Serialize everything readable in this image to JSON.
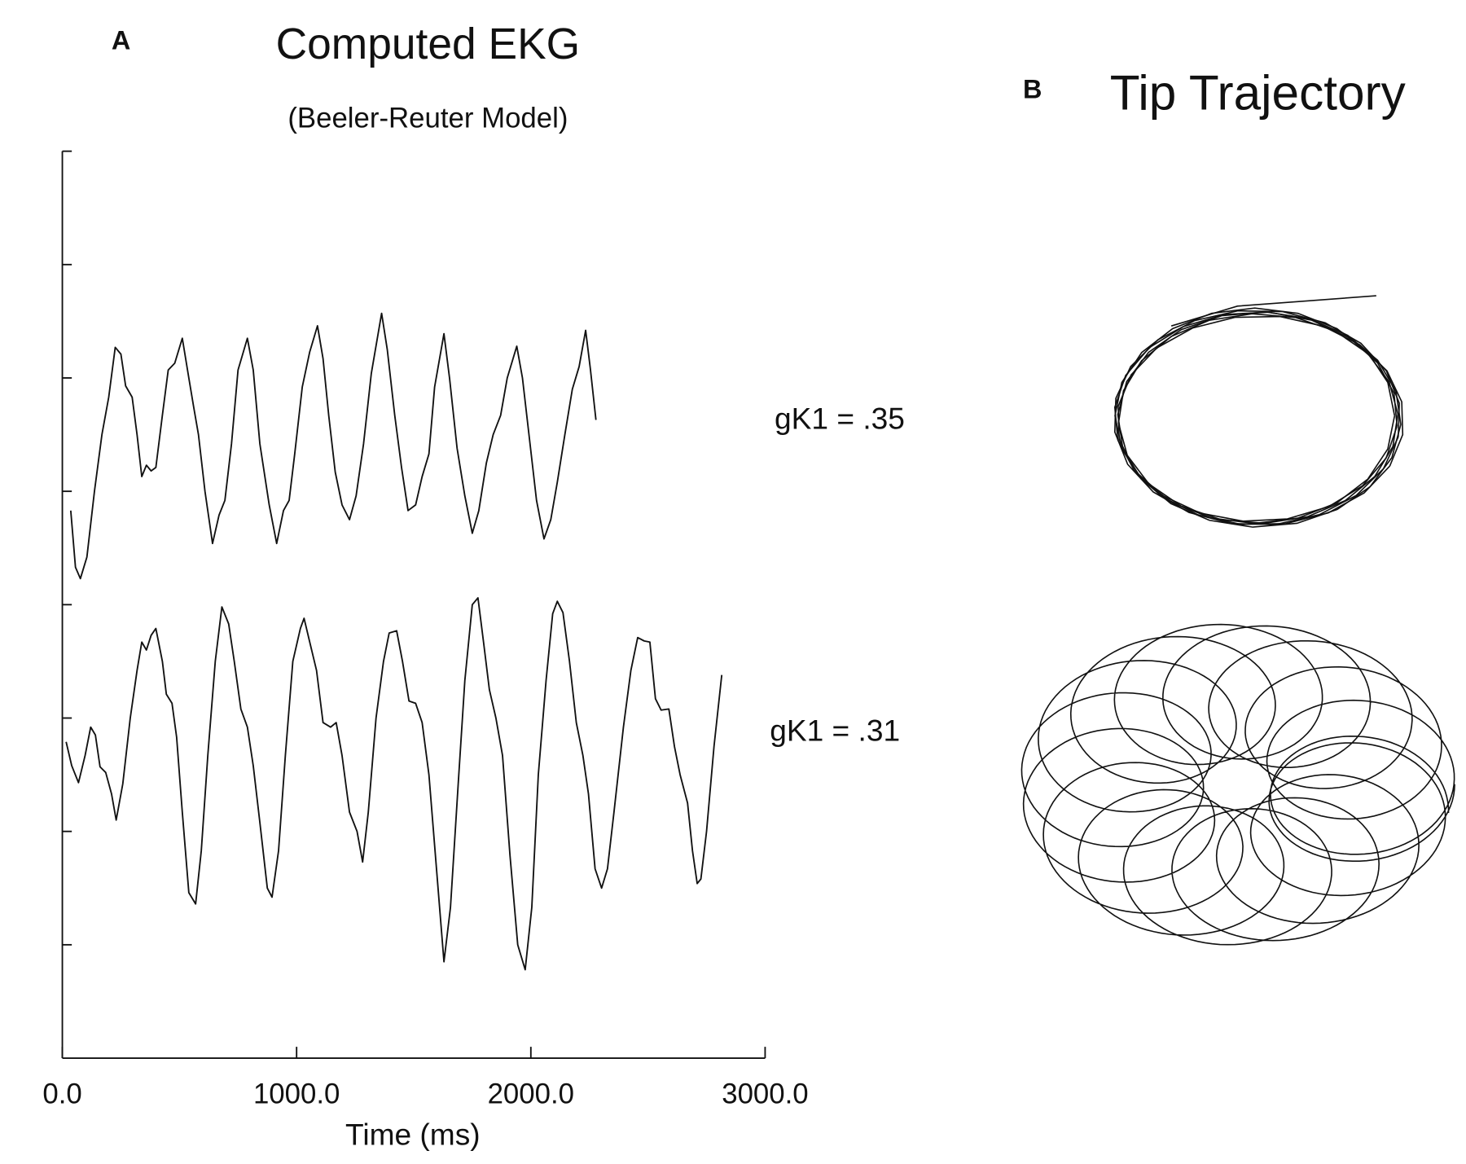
{
  "chart_data": [
    {
      "type": "line",
      "panel_label": "A",
      "title": "Computed EKG",
      "subtitle": "(Beeler-Reuter Model)",
      "x_label": "Time (ms)",
      "xlim": [
        0,
        3000
      ],
      "xticks": [
        {
          "value": 0,
          "label": "0.0"
        },
        {
          "value": 1000,
          "label": "1000.0"
        },
        {
          "value": 2000,
          "label": "2000.0"
        },
        {
          "value": 3000,
          "label": "3000.0"
        }
      ],
      "ylim": [
        0,
        8
      ],
      "yticks": [
        1,
        2,
        3,
        4,
        5,
        6,
        7,
        8
      ],
      "series": [
        {
          "name": "gK1 = .35",
          "color": "#111111",
          "x": [
            36,
            56,
            77,
            105,
            137,
            169,
            198,
            226,
            250,
            270,
            298,
            319,
            339,
            359,
            379,
            399,
            427,
            452,
            480,
            512,
            540,
            560,
            581,
            609,
            641,
            669,
            694,
            722,
            750,
            790,
            815,
            843,
            883,
            915,
            944,
            968,
            992,
            1024,
            1056,
            1089,
            1113,
            1137,
            1165,
            1194,
            1226,
            1254,
            1286,
            1319,
            1363,
            1387,
            1419,
            1448,
            1476,
            1508,
            1536,
            1565,
            1589,
            1629,
            1653,
            1685,
            1718,
            1750,
            1778,
            1810,
            1839,
            1871,
            1899,
            1940,
            1964,
            1992,
            2024,
            2056,
            2085,
            2113,
            2145,
            2177,
            2206,
            2234,
            2254,
            2278
          ],
          "values": [
            4.83,
            4.33,
            4.23,
            4.42,
            5.0,
            5.5,
            5.83,
            6.27,
            6.21,
            5.93,
            5.83,
            5.5,
            5.13,
            5.23,
            5.18,
            5.21,
            5.67,
            6.07,
            6.13,
            6.35,
            6.0,
            5.75,
            5.5,
            5.0,
            4.54,
            4.79,
            4.92,
            5.42,
            6.07,
            6.35,
            6.07,
            5.42,
            4.88,
            4.54,
            4.83,
            4.92,
            5.33,
            5.92,
            6.23,
            6.46,
            6.17,
            5.67,
            5.17,
            4.88,
            4.75,
            4.96,
            5.42,
            6.04,
            6.57,
            6.25,
            5.67,
            5.21,
            4.83,
            4.88,
            5.13,
            5.33,
            5.92,
            6.39,
            6.0,
            5.38,
            4.96,
            4.63,
            4.83,
            5.25,
            5.5,
            5.67,
            6.0,
            6.28,
            6.0,
            5.5,
            4.92,
            4.58,
            4.75,
            5.08,
            5.5,
            5.9,
            6.1,
            6.42,
            6.08,
            5.63
          ]
        },
        {
          "name": "gK1 = .31",
          "color": "#111111",
          "x": [
            16,
            40,
            69,
            97,
            121,
            141,
            161,
            185,
            210,
            230,
            258,
            290,
            319,
            339,
            359,
            379,
            399,
            427,
            444,
            468,
            488,
            512,
            540,
            569,
            593,
            621,
            653,
            681,
            710,
            734,
            762,
            790,
            815,
            843,
            875,
            895,
            923,
            952,
            984,
            1016,
            1032,
            1056,
            1085,
            1113,
            1145,
            1169,
            1194,
            1226,
            1258,
            1282,
            1306,
            1339,
            1371,
            1395,
            1427,
            1452,
            1480,
            1508,
            1536,
            1565,
            1597,
            1629,
            1657,
            1690,
            1718,
            1750,
            1774,
            1798,
            1823,
            1851,
            1879,
            1911,
            1944,
            1976,
            2004,
            2032,
            2065,
            2093,
            2113,
            2137,
            2165,
            2194,
            2222,
            2246,
            2274,
            2302,
            2327,
            2355,
            2395,
            2427,
            2456,
            2484,
            2508,
            2532,
            2556,
            2589,
            2613,
            2637,
            2669,
            2690,
            2710,
            2726,
            2750,
            2782,
            2815
          ],
          "values": [
            2.79,
            2.58,
            2.43,
            2.67,
            2.92,
            2.85,
            2.57,
            2.52,
            2.33,
            2.1,
            2.42,
            3.0,
            3.42,
            3.67,
            3.6,
            3.73,
            3.79,
            3.5,
            3.21,
            3.13,
            2.83,
            2.17,
            1.46,
            1.36,
            1.83,
            2.67,
            3.5,
            3.98,
            3.83,
            3.5,
            3.08,
            2.92,
            2.58,
            2.08,
            1.5,
            1.42,
            1.83,
            2.67,
            3.5,
            3.79,
            3.88,
            3.67,
            3.42,
            2.96,
            2.92,
            2.96,
            2.67,
            2.17,
            2.0,
            1.73,
            2.17,
            3.0,
            3.5,
            3.75,
            3.77,
            3.5,
            3.15,
            3.13,
            2.96,
            2.5,
            1.67,
            0.85,
            1.33,
            2.42,
            3.33,
            4.0,
            4.06,
            3.67,
            3.25,
            3.0,
            2.67,
            1.79,
            1.0,
            0.78,
            1.33,
            2.5,
            3.33,
            3.92,
            4.03,
            3.93,
            3.5,
            2.96,
            2.67,
            2.33,
            1.67,
            1.5,
            1.67,
            2.17,
            2.92,
            3.42,
            3.71,
            3.68,
            3.67,
            3.17,
            3.07,
            3.08,
            2.75,
            2.5,
            2.25,
            1.83,
            1.54,
            1.58,
            2.0,
            2.75,
            3.38
          ]
        }
      ]
    },
    {
      "type": "trajectory",
      "panel_label": "B",
      "title": "Tip Trajectory"
    }
  ]
}
